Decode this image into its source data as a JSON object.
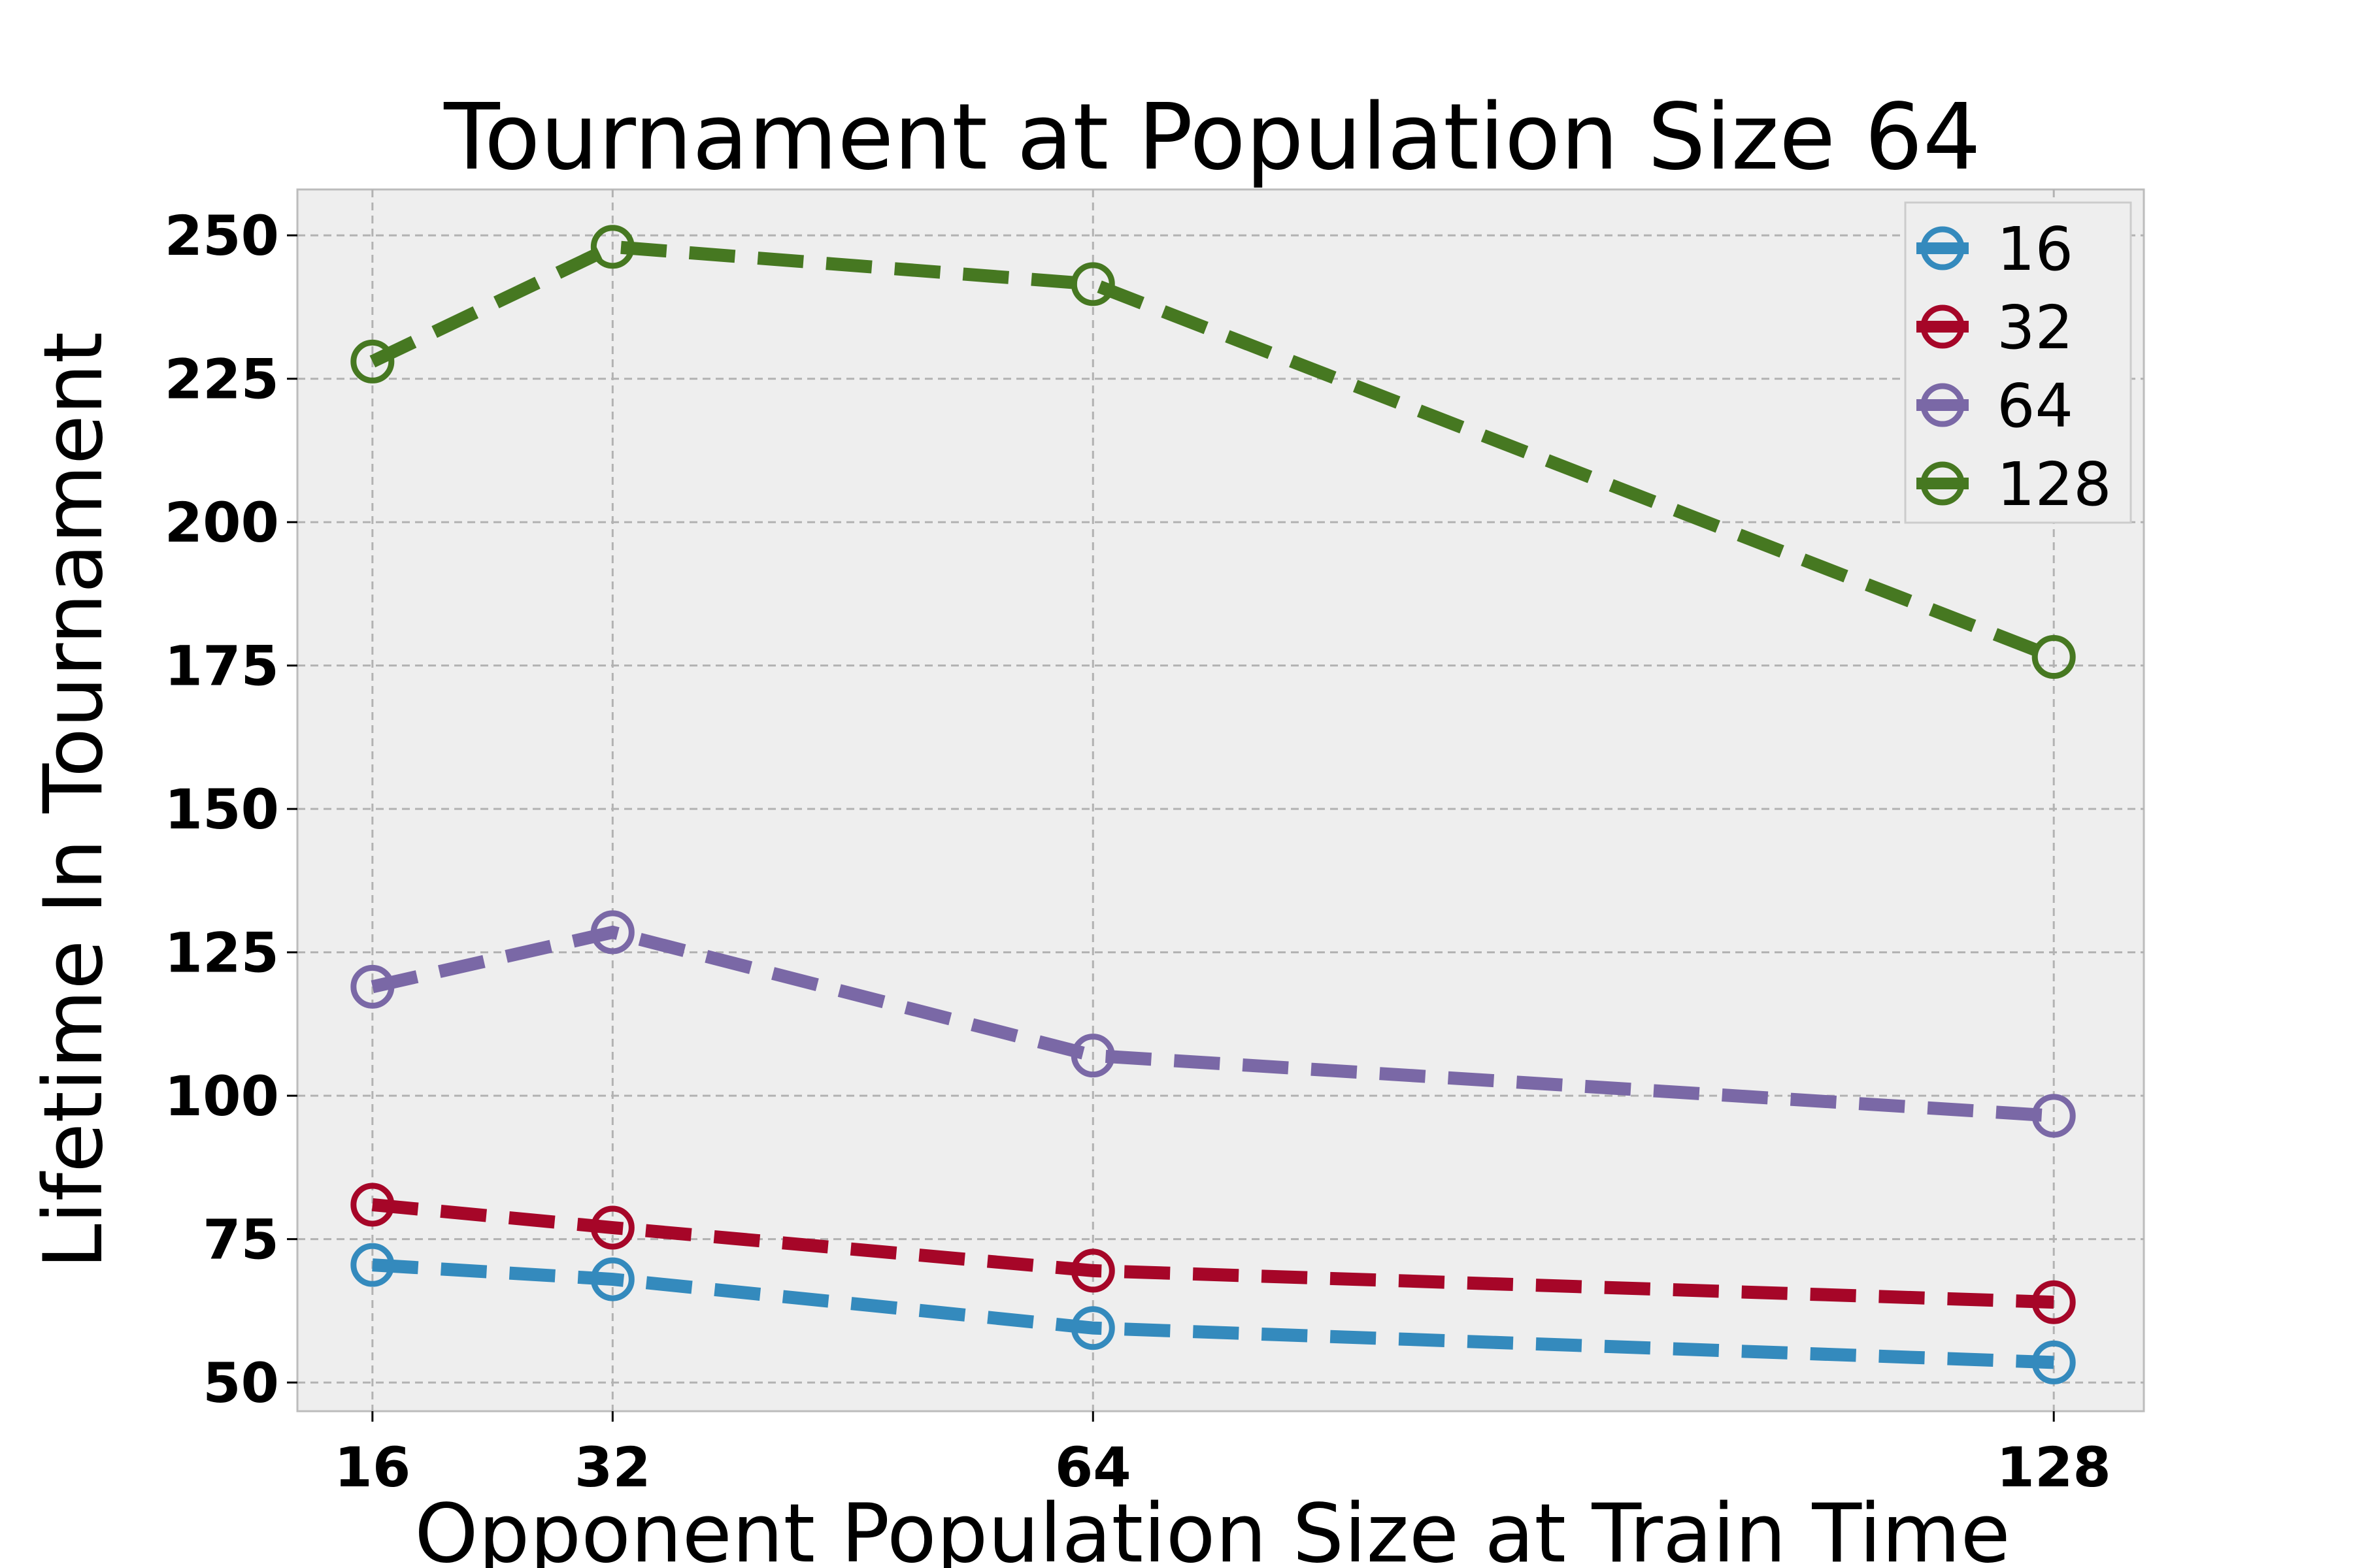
{
  "chart_data": {
    "type": "line",
    "title": "Tournament at Population Size 64",
    "xlabel": "Opponent Population Size at Train Time",
    "ylabel": "Lifetime In Tournament",
    "x": [
      16,
      32,
      64,
      128
    ],
    "xticks": [
      "16",
      "32",
      "64",
      "128"
    ],
    "xlim": [
      11,
      134
    ],
    "ylim": [
      45,
      258
    ],
    "yticks": [
      50,
      75,
      100,
      125,
      150,
      175,
      200,
      225,
      250
    ],
    "ytick_labels": [
      "50",
      "75",
      "100",
      "125",
      "150",
      "175",
      "200",
      "225",
      "250"
    ],
    "grid": true,
    "legend_position": "top-right",
    "series": [
      {
        "name": "16",
        "color": "#348ABD",
        "values": [
          70.5,
          68,
          59.5,
          53.5
        ]
      },
      {
        "name": "32",
        "color": "#A60628",
        "values": [
          81,
          77,
          69.5,
          64
        ]
      },
      {
        "name": "64",
        "color": "#7A68A6",
        "values": [
          119,
          128.5,
          107,
          96.5
        ]
      },
      {
        "name": "128",
        "color": "#467821",
        "values": [
          228,
          248,
          241.5,
          176.5
        ]
      }
    ]
  }
}
